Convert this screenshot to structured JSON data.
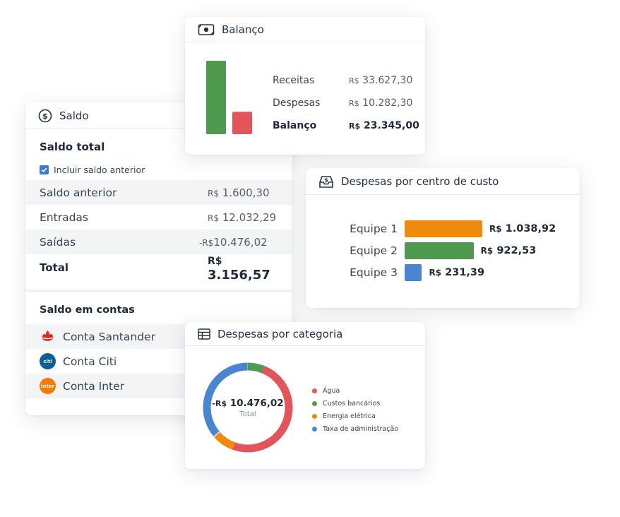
{
  "colors": {
    "green": "#4e9a4f",
    "red": "#e5545a",
    "orange": "#f08a0c",
    "blue": "#4b84d1"
  },
  "saldo": {
    "title": "Saldo",
    "icon": "dollar-circle-icon",
    "subtitle": "Saldo total",
    "checkbox_label": "Incluir saldo anterior",
    "rows": [
      {
        "label": "Saldo anterior",
        "currency": "R$",
        "value": "1.600,30"
      },
      {
        "label": "Entradas",
        "currency": "R$",
        "value": "12.032,29"
      },
      {
        "label": "Saídas",
        "currency": "-R$",
        "value": "10.476,02"
      }
    ],
    "total_label": "Total",
    "total_currency": "R$",
    "total_value": "3.156,57",
    "contas_title": "Saldo em contas",
    "contas": [
      {
        "label": "Conta Santander",
        "logo": "santander-logo-icon"
      },
      {
        "label": "Conta Citi",
        "logo": "citi-logo-icon",
        "logo_text": "citi"
      },
      {
        "label": "Conta Inter",
        "logo": "inter-logo-icon",
        "logo_text": "inter"
      }
    ]
  },
  "balanco": {
    "title": "Balanço",
    "icon": "money-bill-icon",
    "rows": [
      {
        "label": "Receitas",
        "currency": "R$",
        "value": "33.627,30"
      },
      {
        "label": "Despesas",
        "currency": "R$",
        "value": "10.282,30"
      },
      {
        "label": "Balanço",
        "currency": "R$",
        "value": "23.345,00"
      }
    ],
    "chart": {
      "receitas": 33627.3,
      "despesas": 10282.3
    }
  },
  "centro": {
    "title": "Despesas por centro de custo",
    "icon": "inbox-dollar-icon",
    "items": [
      {
        "label": "Equipe 1",
        "currency": "R$",
        "value": "1.038,92",
        "amount": 1038.92,
        "color": "#f08a0c"
      },
      {
        "label": "Equipe 2",
        "currency": "R$",
        "value": "922,53",
        "amount": 922.53,
        "color": "#4e9a4f"
      },
      {
        "label": "Equipe 3",
        "currency": "R$",
        "value": "231,39",
        "amount": 231.39,
        "color": "#4b84d1"
      }
    ]
  },
  "categoria": {
    "title": "Despesas por categoria",
    "icon": "table-icon",
    "total_currency": "-R$",
    "total_value": "10.476,02",
    "total_label": "Total",
    "segments": [
      {
        "label": "Água",
        "share": 0.5,
        "color": "#e5545a"
      },
      {
        "label": "Custos bancários",
        "share": 0.06,
        "color": "#4e9a4f"
      },
      {
        "label": "Energia elétrica",
        "share": 0.08,
        "color": "#f08a0c"
      },
      {
        "label": "Taxa de administração",
        "share": 0.36,
        "color": "#4b84d1"
      }
    ]
  }
}
